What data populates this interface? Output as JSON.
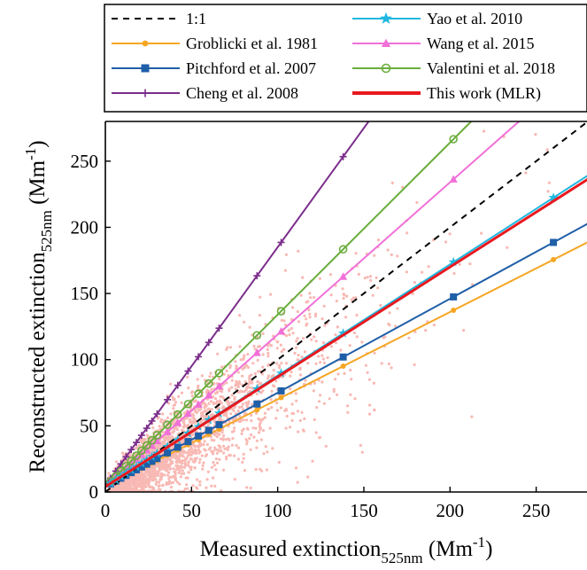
{
  "chart_data": {
    "type": "scatter",
    "xlabel": {
      "main": "Measured extinction",
      "sub": "525nm",
      "unit_pre": " (Mm",
      "unit_sup": "-1",
      "unit_post": ")"
    },
    "ylabel": {
      "main": "Reconstructed extinction",
      "sub": "525nm",
      "unit_pre": " (Mm",
      "unit_sup": "-1",
      "unit_post": ")"
    },
    "xlim": [
      0,
      280
    ],
    "ylim": [
      0,
      280
    ],
    "xticks": [
      0,
      50,
      100,
      150,
      200,
      250
    ],
    "yticks": [
      0,
      50,
      100,
      150,
      200,
      250
    ],
    "grid": false,
    "legend_position": "top, outside plot, two columns",
    "scatter": {
      "name": "observations",
      "color": "#f8b9b4",
      "count": 3000,
      "approx_slope": 0.85
    },
    "series": [
      {
        "name": "1:1",
        "slope": 1.0,
        "intercept": 0,
        "color": "#000000",
        "style": "dashed",
        "marker": "none"
      },
      {
        "name": "Groblicki et al. 1981",
        "slope": 0.66,
        "intercept": 4,
        "color": "#f5a623",
        "style": "solid",
        "marker": "dot"
      },
      {
        "name": "Pitchford et al. 2007",
        "slope": 0.71,
        "intercept": 4,
        "color": "#1f5fa8",
        "style": "solid",
        "marker": "square"
      },
      {
        "name": "Cheng et al. 2008",
        "slope": 1.8,
        "intercept": 5,
        "color": "#7b2d8b",
        "style": "solid",
        "marker": "plus"
      },
      {
        "name": "Yao et al. 2010",
        "slope": 0.84,
        "intercept": 4,
        "color": "#1fb8e0",
        "style": "solid",
        "marker": "star"
      },
      {
        "name": "Wang et al. 2015",
        "slope": 1.15,
        "intercept": 4,
        "color": "#f070d8",
        "style": "solid",
        "marker": "triangle"
      },
      {
        "name": "Valentini et al. 2018",
        "slope": 1.3,
        "intercept": 4,
        "color": "#6aad3d",
        "style": "solid",
        "marker": "circle"
      },
      {
        "name": "This work (MLR)",
        "slope": 0.83,
        "intercept": 4,
        "color": "#e8191f",
        "style": "thick",
        "marker": "none"
      }
    ],
    "marker_x": [
      3,
      6,
      9,
      12,
      15,
      18,
      21,
      24,
      27,
      30,
      36,
      42,
      48,
      54,
      60,
      66,
      88,
      102,
      138,
      202,
      260
    ]
  }
}
